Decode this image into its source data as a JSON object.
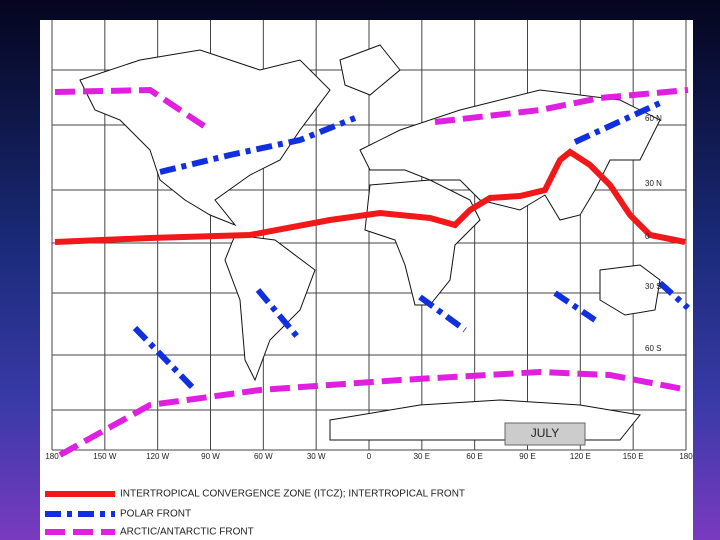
{
  "map": {
    "inset_label": "JULY",
    "longitude_labels": [
      "180",
      "150 W",
      "120 W",
      "90 W",
      "60 W",
      "30 W",
      "0",
      "30 E",
      "60 E",
      "90 E",
      "120 E",
      "150 E",
      "180"
    ],
    "latitude_labels": [
      "60 N",
      "30 N",
      "0",
      "30 S",
      "60 S"
    ]
  },
  "legend": [
    {
      "label": "INTERTROPICAL CONVERGENCE ZONE (ITCZ); INTERTROPICAL FRONT"
    },
    {
      "label": "POLAR FRONT"
    },
    {
      "label": "ARCTIC/ANTARCTIC FRONT"
    }
  ]
}
